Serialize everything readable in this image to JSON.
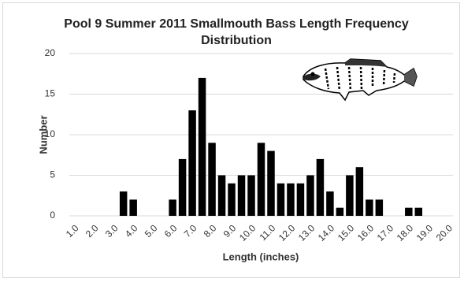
{
  "chart_data": {
    "type": "bar",
    "title": "Pool 9 Summer 2011 Smallmouth Bass Length Frequency Distribution",
    "x_label": "Length (inches)",
    "y_label": "Number",
    "categories": [
      "1.0",
      null,
      "2.0",
      null,
      "3.0",
      null,
      "4.0",
      null,
      "5.0",
      null,
      "6.0",
      null,
      "7.0",
      null,
      "8.0",
      null,
      "9.0",
      null,
      "10.0",
      null,
      "11.0",
      null,
      "12.0",
      null,
      "13.0",
      null,
      "14.0",
      null,
      "15.0",
      null,
      "16.0",
      null,
      "17.0",
      null,
      "18.0",
      null,
      "19.0",
      null,
      "20.0"
    ],
    "values": [
      0,
      0,
      0,
      0,
      0,
      3,
      2,
      0,
      0,
      0,
      2,
      7,
      13,
      17,
      9,
      5,
      4,
      5,
      5,
      9,
      8,
      4,
      4,
      4,
      5,
      7,
      3,
      1,
      5,
      6,
      2,
      2,
      0,
      0,
      1,
      1,
      0,
      0,
      0
    ],
    "color": "#000000",
    "ylim": [
      0,
      20
    ],
    "yticks": [
      0,
      5,
      10,
      15,
      20
    ],
    "grid": true
  }
}
